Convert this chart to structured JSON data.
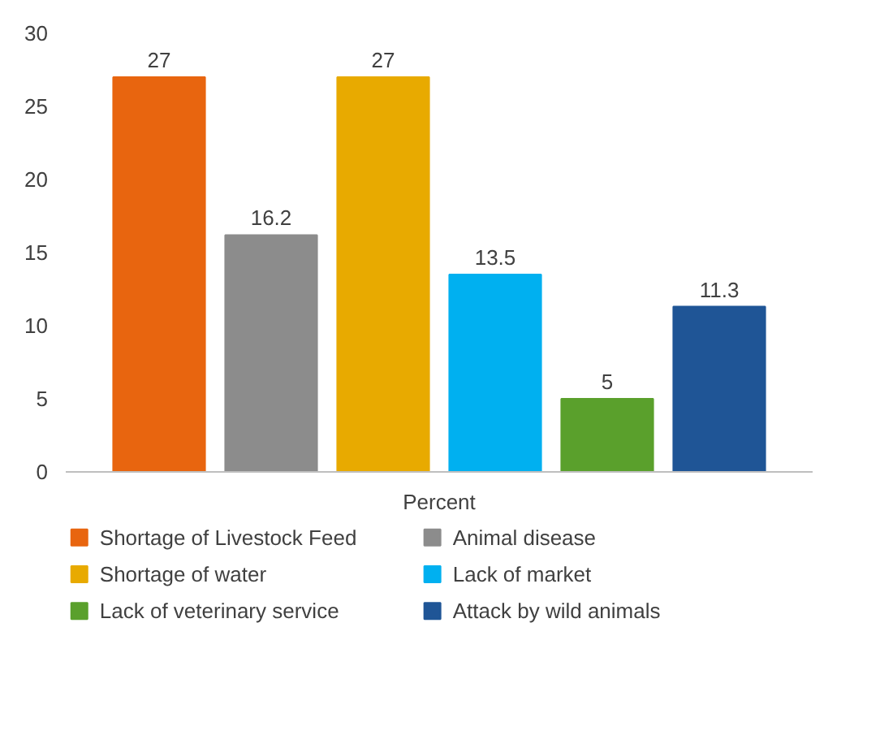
{
  "chart_data": {
    "type": "bar",
    "categories": [
      "Percent"
    ],
    "series": [
      {
        "name": "Shortage of Livestock Feed",
        "color": "#e8650f",
        "values": [
          27
        ]
      },
      {
        "name": "Animal disease",
        "color": "#8c8c8c",
        "values": [
          16.2
        ]
      },
      {
        "name": "Shortage of water",
        "color": "#e8aa00",
        "values": [
          27
        ]
      },
      {
        "name": "Lack of market",
        "color": "#00b0f0",
        "values": [
          13.5
        ]
      },
      {
        "name": "Lack of veterinary service",
        "color": "#5aa02c",
        "values": [
          5
        ]
      },
      {
        "name": "Attack by wild animals",
        "color": "#1f5596",
        "values": [
          11.3
        ]
      }
    ],
    "ylim": [
      0,
      30
    ],
    "yticks": [
      0,
      5,
      10,
      15,
      20,
      25,
      30
    ],
    "data_labels": true,
    "grid": false,
    "legend": "bottom"
  }
}
